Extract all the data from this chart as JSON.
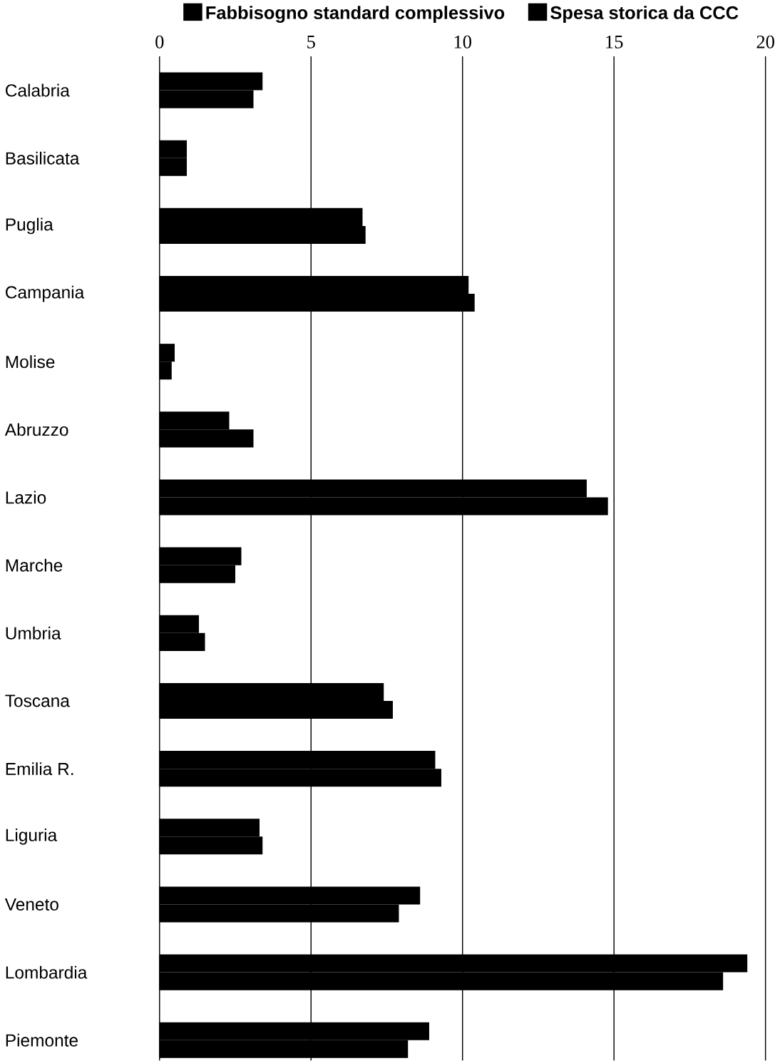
{
  "chart_data": {
    "type": "bar",
    "orientation": "horizontal",
    "categories": [
      "Calabria",
      "Basilicata",
      "Puglia",
      "Campania",
      "Molise",
      "Abruzzo",
      "Lazio",
      "Marche",
      "Umbria",
      "Toscana",
      "Emilia R.",
      "Liguria",
      "Veneto",
      "Lombardia",
      "Piemonte"
    ],
    "series": [
      {
        "name": "Fabbisogno standard complessivo",
        "color": "#000000",
        "values": [
          3.4,
          0.9,
          6.7,
          10.2,
          0.5,
          2.3,
          14.1,
          2.7,
          1.3,
          7.4,
          9.1,
          3.3,
          8.6,
          19.4,
          8.9
        ]
      },
      {
        "name": "Spesa storica da CCC",
        "color": "#000000",
        "values": [
          3.1,
          0.9,
          6.8,
          10.4,
          0.4,
          3.1,
          14.8,
          2.5,
          1.5,
          7.7,
          9.3,
          3.4,
          7.9,
          18.6,
          8.2
        ]
      }
    ],
    "xlim": [
      0,
      20
    ],
    "xticks": [
      0,
      5,
      10,
      15,
      20
    ],
    "grid": "x",
    "legend": "top"
  }
}
